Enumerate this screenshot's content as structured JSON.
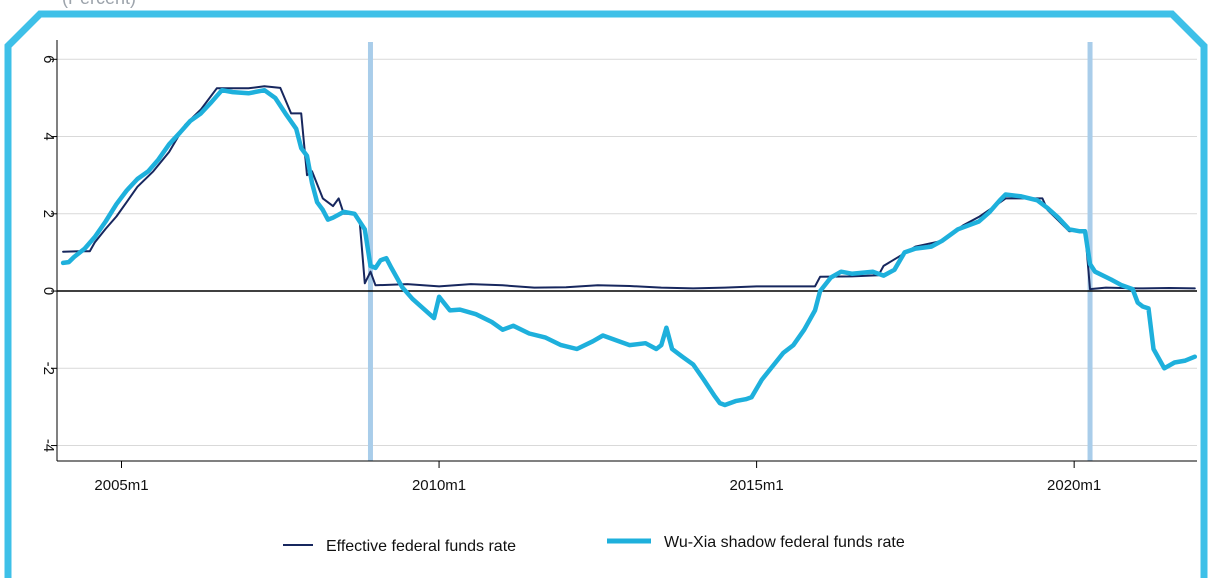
{
  "header": {
    "note": "(Percent)"
  },
  "colors": {
    "frame": "#3ec0e8",
    "effr": "#17275e",
    "shadow": "#1eb0dc",
    "recession": "#a9cdea",
    "grid": "#d9d9d9",
    "zero": "#000000"
  },
  "chart_data": {
    "type": "line",
    "title": "",
    "xlabel": "",
    "ylabel": "",
    "xlim": [
      2004.0,
      2021.95
    ],
    "ylim": [
      -4.4,
      6.5
    ],
    "grid": true,
    "legend": "bottom-center",
    "x_ticks": [
      {
        "value": 2005.0,
        "label": "2005m1"
      },
      {
        "value": 2010.0,
        "label": "2010m1"
      },
      {
        "value": 2015.0,
        "label": "2015m1"
      },
      {
        "value": 2020.0,
        "label": "2020m1"
      }
    ],
    "y_ticks": [
      {
        "value": 6,
        "label": "6"
      },
      {
        "value": 4,
        "label": "4"
      },
      {
        "value": 2,
        "label": "2"
      },
      {
        "value": 0,
        "label": "0"
      },
      {
        "value": -2,
        "label": "-2"
      },
      {
        "value": -4,
        "label": "-4"
      }
    ],
    "reference_lines": [
      {
        "axis": "x",
        "value": 2008.92
      },
      {
        "axis": "x",
        "value": 2020.25
      }
    ],
    "series": [
      {
        "name": "Effective federal funds rate",
        "points": [
          [
            2004.08,
            1.02
          ],
          [
            2004.33,
            1.03
          ],
          [
            2004.5,
            1.03
          ],
          [
            2004.58,
            1.26
          ],
          [
            2004.75,
            1.61
          ],
          [
            2004.92,
            1.93
          ],
          [
            2005.08,
            2.3
          ],
          [
            2005.25,
            2.7
          ],
          [
            2005.5,
            3.1
          ],
          [
            2005.75,
            3.6
          ],
          [
            2006.0,
            4.3
          ],
          [
            2006.25,
            4.7
          ],
          [
            2006.5,
            5.25
          ],
          [
            2007.0,
            5.25
          ],
          [
            2007.25,
            5.3
          ],
          [
            2007.5,
            5.26
          ],
          [
            2007.67,
            4.6
          ],
          [
            2007.83,
            4.6
          ],
          [
            2007.92,
            3.0
          ],
          [
            2008.0,
            3.1
          ],
          [
            2008.17,
            2.4
          ],
          [
            2008.33,
            2.2
          ],
          [
            2008.42,
            2.4
          ],
          [
            2008.5,
            2.0
          ],
          [
            2008.67,
            2.0
          ],
          [
            2008.75,
            1.8
          ],
          [
            2008.83,
            0.2
          ],
          [
            2008.92,
            0.5
          ],
          [
            2009.0,
            0.15
          ],
          [
            2009.5,
            0.18
          ],
          [
            2010.0,
            0.12
          ],
          [
            2010.5,
            0.18
          ],
          [
            2011.0,
            0.15
          ],
          [
            2011.5,
            0.09
          ],
          [
            2012.0,
            0.1
          ],
          [
            2012.5,
            0.15
          ],
          [
            2013.0,
            0.13
          ],
          [
            2013.5,
            0.09
          ],
          [
            2014.0,
            0.07
          ],
          [
            2014.5,
            0.09
          ],
          [
            2015.0,
            0.12
          ],
          [
            2015.92,
            0.12
          ],
          [
            2016.0,
            0.37
          ],
          [
            2016.5,
            0.38
          ],
          [
            2016.92,
            0.41
          ],
          [
            2017.0,
            0.65
          ],
          [
            2017.25,
            0.9
          ],
          [
            2017.5,
            1.15
          ],
          [
            2017.92,
            1.3
          ],
          [
            2018.0,
            1.42
          ],
          [
            2018.25,
            1.7
          ],
          [
            2018.5,
            1.92
          ],
          [
            2018.75,
            2.2
          ],
          [
            2018.92,
            2.4
          ],
          [
            2019.5,
            2.4
          ],
          [
            2019.58,
            2.1
          ],
          [
            2019.75,
            1.83
          ],
          [
            2019.92,
            1.55
          ],
          [
            2020.17,
            1.58
          ],
          [
            2020.25,
            0.05
          ],
          [
            2020.5,
            0.09
          ],
          [
            2021.0,
            0.07
          ],
          [
            2021.5,
            0.08
          ],
          [
            2021.9,
            0.07
          ]
        ]
      },
      {
        "name": "Wu-Xia shadow federal funds rate",
        "points": [
          [
            2004.08,
            0.73
          ],
          [
            2004.17,
            0.75
          ],
          [
            2004.25,
            0.88
          ],
          [
            2004.42,
            1.1
          ],
          [
            2004.58,
            1.4
          ],
          [
            2004.75,
            1.8
          ],
          [
            2004.92,
            2.25
          ],
          [
            2005.08,
            2.6
          ],
          [
            2005.25,
            2.9
          ],
          [
            2005.42,
            3.1
          ],
          [
            2005.58,
            3.4
          ],
          [
            2005.75,
            3.8
          ],
          [
            2005.92,
            4.1
          ],
          [
            2006.08,
            4.4
          ],
          [
            2006.25,
            4.6
          ],
          [
            2006.42,
            4.9
          ],
          [
            2006.58,
            5.2
          ],
          [
            2006.75,
            5.15
          ],
          [
            2007.0,
            5.12
          ],
          [
            2007.25,
            5.2
          ],
          [
            2007.42,
            5.0
          ],
          [
            2007.58,
            4.6
          ],
          [
            2007.75,
            4.2
          ],
          [
            2007.83,
            3.7
          ],
          [
            2007.92,
            3.5
          ],
          [
            2008.0,
            2.8
          ],
          [
            2008.08,
            2.3
          ],
          [
            2008.17,
            2.1
          ],
          [
            2008.25,
            1.85
          ],
          [
            2008.33,
            1.9
          ],
          [
            2008.5,
            2.05
          ],
          [
            2008.67,
            2.0
          ],
          [
            2008.83,
            1.6
          ],
          [
            2008.92,
            0.65
          ],
          [
            2009.0,
            0.6
          ],
          [
            2009.08,
            0.8
          ],
          [
            2009.17,
            0.85
          ],
          [
            2009.25,
            0.6
          ],
          [
            2009.42,
            0.1
          ],
          [
            2009.58,
            -0.2
          ],
          [
            2009.75,
            -0.45
          ],
          [
            2009.92,
            -0.7
          ],
          [
            2010.0,
            -0.15
          ],
          [
            2010.17,
            -0.5
          ],
          [
            2010.33,
            -0.48
          ],
          [
            2010.58,
            -0.6
          ],
          [
            2010.83,
            -0.8
          ],
          [
            2011.0,
            -1.0
          ],
          [
            2011.17,
            -0.9
          ],
          [
            2011.42,
            -1.1
          ],
          [
            2011.67,
            -1.2
          ],
          [
            2011.92,
            -1.4
          ],
          [
            2012.17,
            -1.5
          ],
          [
            2012.42,
            -1.3
          ],
          [
            2012.58,
            -1.15
          ],
          [
            2012.83,
            -1.3
          ],
          [
            2013.0,
            -1.4
          ],
          [
            2013.25,
            -1.35
          ],
          [
            2013.42,
            -1.5
          ],
          [
            2013.5,
            -1.4
          ],
          [
            2013.58,
            -0.95
          ],
          [
            2013.67,
            -1.5
          ],
          [
            2013.83,
            -1.7
          ],
          [
            2014.0,
            -1.9
          ],
          [
            2014.17,
            -2.3
          ],
          [
            2014.33,
            -2.7
          ],
          [
            2014.42,
            -2.9
          ],
          [
            2014.5,
            -2.95
          ],
          [
            2014.67,
            -2.85
          ],
          [
            2014.83,
            -2.8
          ],
          [
            2014.92,
            -2.75
          ],
          [
            2015.08,
            -2.3
          ],
          [
            2015.25,
            -1.95
          ],
          [
            2015.42,
            -1.6
          ],
          [
            2015.58,
            -1.4
          ],
          [
            2015.75,
            -1.0
          ],
          [
            2015.92,
            -0.5
          ],
          [
            2016.0,
            0.0
          ],
          [
            2016.17,
            0.35
          ],
          [
            2016.33,
            0.5
          ],
          [
            2016.5,
            0.45
          ],
          [
            2016.83,
            0.5
          ],
          [
            2017.0,
            0.4
          ],
          [
            2017.17,
            0.55
          ],
          [
            2017.33,
            1.0
          ],
          [
            2017.5,
            1.1
          ],
          [
            2017.75,
            1.15
          ],
          [
            2017.92,
            1.3
          ],
          [
            2018.17,
            1.6
          ],
          [
            2018.5,
            1.8
          ],
          [
            2018.67,
            2.05
          ],
          [
            2018.83,
            2.35
          ],
          [
            2018.92,
            2.5
          ],
          [
            2019.17,
            2.45
          ],
          [
            2019.42,
            2.35
          ],
          [
            2019.58,
            2.15
          ],
          [
            2019.75,
            1.9
          ],
          [
            2019.92,
            1.6
          ],
          [
            2020.08,
            1.55
          ],
          [
            2020.17,
            1.55
          ],
          [
            2020.25,
            0.7
          ],
          [
            2020.33,
            0.5
          ],
          [
            2020.58,
            0.3
          ],
          [
            2020.75,
            0.15
          ],
          [
            2020.92,
            0.05
          ],
          [
            2021.0,
            -0.3
          ],
          [
            2021.08,
            -0.4
          ],
          [
            2021.17,
            -0.45
          ],
          [
            2021.25,
            -1.5
          ],
          [
            2021.42,
            -2.0
          ],
          [
            2021.58,
            -1.85
          ],
          [
            2021.75,
            -1.8
          ],
          [
            2021.9,
            -1.7
          ]
        ]
      }
    ]
  }
}
